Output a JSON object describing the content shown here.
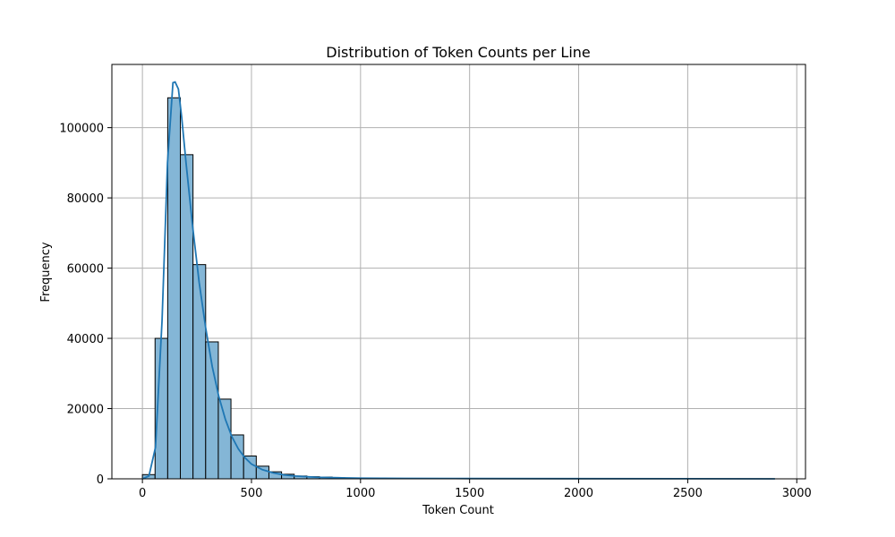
{
  "chart_data": {
    "type": "bar",
    "title": "Distribution of Token Counts per Line",
    "xlabel": "Token Count",
    "ylabel": "Frequency",
    "xlim": [
      -140,
      3040
    ],
    "ylim": [
      0,
      118000
    ],
    "xticks": [
      0,
      500,
      1000,
      1500,
      2000,
      2500,
      3000
    ],
    "yticks": [
      0,
      20000,
      40000,
      60000,
      80000,
      100000
    ],
    "grid": true,
    "bin_width": 58,
    "bins": [
      {
        "x0": 0,
        "x1": 58,
        "count": 1200
      },
      {
        "x0": 58,
        "x1": 116,
        "count": 40000
      },
      {
        "x0": 116,
        "x1": 174,
        "count": 108500
      },
      {
        "x0": 174,
        "x1": 232,
        "count": 92300
      },
      {
        "x0": 232,
        "x1": 290,
        "count": 61000
      },
      {
        "x0": 290,
        "x1": 348,
        "count": 39000
      },
      {
        "x0": 348,
        "x1": 406,
        "count": 22700
      },
      {
        "x0": 406,
        "x1": 464,
        "count": 12500
      },
      {
        "x0": 464,
        "x1": 522,
        "count": 6500
      },
      {
        "x0": 522,
        "x1": 580,
        "count": 3600
      },
      {
        "x0": 580,
        "x1": 638,
        "count": 2000
      },
      {
        "x0": 638,
        "x1": 696,
        "count": 1300
      },
      {
        "x0": 696,
        "x1": 754,
        "count": 800
      },
      {
        "x0": 754,
        "x1": 812,
        "count": 600
      },
      {
        "x0": 812,
        "x1": 870,
        "count": 500
      },
      {
        "x0": 870,
        "x1": 928,
        "count": 300
      },
      {
        "x0": 928,
        "x1": 986,
        "count": 200
      },
      {
        "x0": 986,
        "x1": 1044,
        "count": 150
      }
    ],
    "kde": {
      "x": [
        0,
        30,
        60,
        90,
        115,
        140,
        150,
        165,
        180,
        200,
        230,
        260,
        290,
        320,
        350,
        380,
        410,
        440,
        470,
        500,
        550,
        600,
        650,
        700,
        800,
        900,
        1000,
        1200,
        1500,
        2000,
        2500,
        2900
      ],
      "y": [
        0,
        800,
        9000,
        45000,
        90000,
        112800,
        113000,
        111000,
        103000,
        90000,
        72000,
        56000,
        43000,
        32000,
        23500,
        17000,
        12000,
        8500,
        6000,
        4200,
        2600,
        1700,
        1100,
        800,
        450,
        300,
        200,
        120,
        80,
        50,
        30,
        0
      ]
    },
    "colors": {
      "bar_fill": "#84b6d6",
      "kde_line": "#1f77b4"
    }
  }
}
